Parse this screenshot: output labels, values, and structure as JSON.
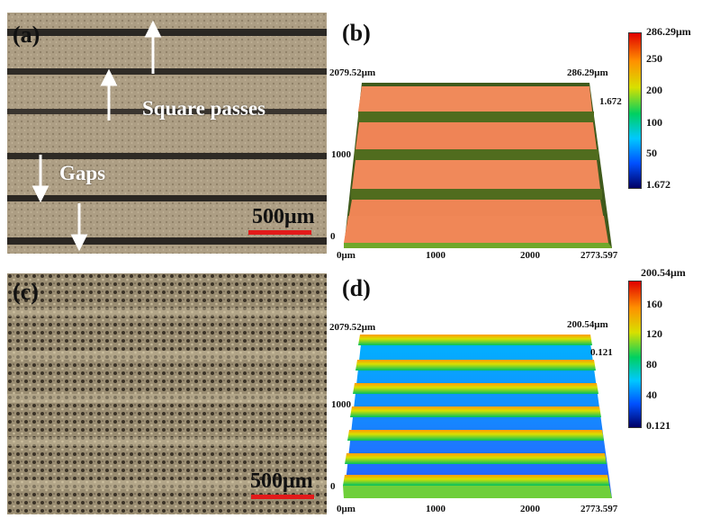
{
  "panels": {
    "a": {
      "label": "(a)",
      "annotations": {
        "square_passes": "Square passes",
        "gaps": "Gaps"
      },
      "scalebar": "500μm"
    },
    "b": {
      "label": "(b)",
      "max_label": "286.29μm",
      "min_label": "1.672",
      "y_max_label": "2079.52μm",
      "y_mid_label": "1000",
      "y_zero_label": "0",
      "x_labels": [
        "0μm",
        "1000",
        "2000",
        "2773.597"
      ],
      "colorbar": {
        "top": "286.29μm",
        "ticks": [
          "250",
          "200",
          "100",
          "50"
        ],
        "bottom": "1.672"
      }
    },
    "c": {
      "label": "(c)",
      "scalebar": "500μm"
    },
    "d": {
      "label": "(d)",
      "max_label": "200.54μm",
      "min_label": "0.121",
      "y_max_label": "2079.52μm",
      "y_mid_label": "1000",
      "y_zero_label": "0",
      "x_labels": [
        "0μm",
        "1000",
        "2000",
        "2773.597"
      ],
      "colorbar": {
        "top": "200.54μm",
        "ticks": [
          "160",
          "120",
          "80",
          "40"
        ],
        "bottom": "0.121"
      }
    }
  },
  "colors": {
    "scalebar": "#e21a1a",
    "surface_b": "#f08a5a",
    "colormap": [
      "#000066",
      "#0050ff",
      "#00c8ff",
      "#00d060",
      "#d8e000",
      "#ff9000",
      "#e00000"
    ]
  }
}
